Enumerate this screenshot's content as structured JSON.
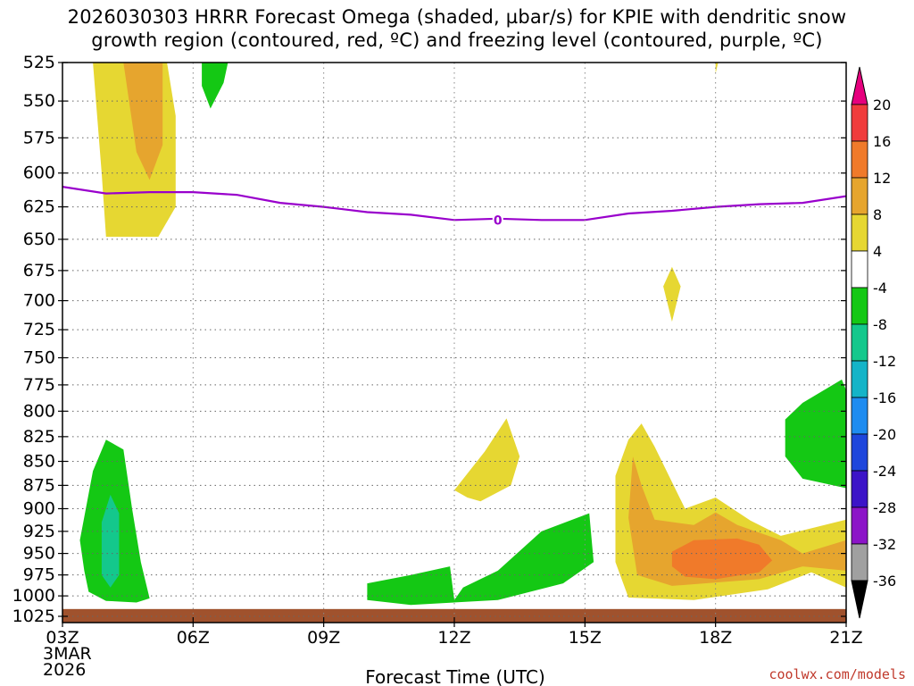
{
  "chart_data": {
    "type": "contour",
    "title": "2026030303 HRRR Forecast Omega (shaded, µbar/s) for KPIE with dendritic snow\ngrowth region (contoured, red, ºC) and freezing level (contoured, purple, ºC)",
    "xlabel": "Forecast Time (UTC)",
    "ylabel": "",
    "credit": "coolwx.com/models",
    "x_ticks": [
      "03Z",
      "06Z",
      "09Z",
      "12Z",
      "15Z",
      "18Z",
      "21Z"
    ],
    "x_tick_hours": [
      0,
      3,
      6,
      9,
      12,
      15,
      18
    ],
    "x_date_line1": "3MAR",
    "x_date_line2": "2026",
    "xlim": [
      0,
      18
    ],
    "y_ticks": [
      "525",
      "550",
      "575",
      "600",
      "625",
      "650",
      "675",
      "700",
      "725",
      "750",
      "775",
      "800",
      "825",
      "850",
      "875",
      "900",
      "925",
      "950",
      "975",
      "1000",
      "1025"
    ],
    "ylim": [
      525,
      1025
    ],
    "y_scale": "log-pressure",
    "grid": true,
    "colorbar": {
      "labels": [
        "20",
        "16",
        "12",
        "8",
        "4",
        "-4",
        "-8",
        "-12",
        "-16",
        "-20",
        "-24",
        "-28",
        "-32",
        "-36"
      ],
      "colors": [
        "#e6007e",
        "#f03c3c",
        "#f07a2a",
        "#e6a52e",
        "#e6d732",
        "#ffffff",
        "#14c814",
        "#14c88c",
        "#14b4c8",
        "#1e8cf0",
        "#1e46dc",
        "#3c14c8",
        "#8c14c8",
        "#a0a0a0",
        "#000000"
      ]
    },
    "freezing_level": {
      "label": "0",
      "color": "#9900cc",
      "points": [
        [
          0,
          610
        ],
        [
          1,
          615
        ],
        [
          2,
          614
        ],
        [
          3,
          614
        ],
        [
          4,
          616
        ],
        [
          5,
          622
        ],
        [
          6,
          625
        ],
        [
          7,
          629
        ],
        [
          8,
          631
        ],
        [
          9,
          635
        ],
        [
          10,
          634
        ],
        [
          11,
          635
        ],
        [
          12,
          635
        ],
        [
          13,
          630
        ],
        [
          14,
          628
        ],
        [
          15,
          625
        ],
        [
          16,
          623
        ],
        [
          17,
          622
        ],
        [
          18,
          617
        ]
      ]
    },
    "terrain": {
      "color": "#a0522d",
      "top_hpa": 1016
    },
    "shaded_regions": [
      {
        "level": "4 to 8",
        "color": "#e6d732",
        "points": [
          [
            0.7,
            525
          ],
          [
            2.4,
            525
          ],
          [
            2.6,
            560
          ],
          [
            2.6,
            625
          ],
          [
            2.2,
            648
          ],
          [
            1.0,
            648
          ],
          [
            0.9,
            600
          ]
        ]
      },
      {
        "level": "8 to 12",
        "color": "#e6a52e",
        "points": [
          [
            1.4,
            525
          ],
          [
            2.3,
            525
          ],
          [
            2.3,
            580
          ],
          [
            2.0,
            605
          ],
          [
            1.7,
            585
          ]
        ]
      },
      {
        "level": "-8 to -4",
        "color": "#14c814",
        "points": [
          [
            3.2,
            525
          ],
          [
            3.8,
            525
          ],
          [
            3.7,
            538
          ],
          [
            3.4,
            555
          ],
          [
            3.2,
            540
          ]
        ]
      },
      {
        "level": "4 to 8",
        "color": "#e6d732",
        "points": [
          [
            15.0,
            525
          ],
          [
            15.06,
            525
          ],
          [
            15.0,
            532
          ]
        ]
      },
      {
        "level": "4 to 8",
        "color": "#e6d732",
        "points": [
          [
            14.0,
            672
          ],
          [
            14.2,
            688
          ],
          [
            14.0,
            718
          ],
          [
            13.8,
            688
          ]
        ]
      },
      {
        "level": "-8 to -4",
        "color": "#14c814",
        "points": [
          [
            0.4,
            935
          ],
          [
            0.7,
            860
          ],
          [
            1.0,
            828
          ],
          [
            1.4,
            838
          ],
          [
            1.6,
            900
          ],
          [
            1.8,
            960
          ],
          [
            2.0,
            1003
          ],
          [
            1.7,
            1008
          ],
          [
            1.0,
            1006
          ],
          [
            0.6,
            995
          ],
          [
            0.5,
            970
          ]
        ]
      },
      {
        "level": "-12 to -8",
        "color": "#14c88c",
        "points": [
          [
            0.9,
            915
          ],
          [
            1.1,
            885
          ],
          [
            1.3,
            905
          ],
          [
            1.3,
            975
          ],
          [
            1.1,
            990
          ],
          [
            0.9,
            975
          ]
        ]
      },
      {
        "level": "-8 to -4",
        "color": "#14c814",
        "points": [
          [
            7.0,
            985
          ],
          [
            8.0,
            975
          ],
          [
            8.9,
            965
          ],
          [
            9.0,
            1005
          ],
          [
            9.2,
            990
          ],
          [
            10.0,
            970
          ],
          [
            11.0,
            925
          ],
          [
            12.1,
            905
          ],
          [
            12.2,
            960
          ],
          [
            11.5,
            985
          ],
          [
            10.0,
            1005
          ],
          [
            8.0,
            1011
          ],
          [
            7.0,
            1005
          ]
        ]
      },
      {
        "level": "4 to 8",
        "color": "#e6d732",
        "points": [
          [
            9.0,
            880
          ],
          [
            9.7,
            840
          ],
          [
            10.2,
            807
          ],
          [
            10.5,
            845
          ],
          [
            10.3,
            875
          ],
          [
            9.6,
            892
          ],
          [
            9.3,
            888
          ]
        ]
      },
      {
        "level": "-8 to -4",
        "color": "#14c814",
        "points": [
          [
            16.6,
            808
          ],
          [
            17.0,
            792
          ],
          [
            17.9,
            770
          ],
          [
            18.0,
            780
          ],
          [
            18.0,
            878
          ],
          [
            17.0,
            868
          ],
          [
            16.6,
            845
          ]
        ]
      },
      {
        "level": "4 to 8",
        "color": "#e6d732",
        "points": [
          [
            12.7,
            865
          ],
          [
            13.0,
            828
          ],
          [
            13.3,
            812
          ],
          [
            13.6,
            835
          ],
          [
            14.3,
            900
          ],
          [
            15.0,
            888
          ],
          [
            15.8,
            913
          ],
          [
            16.5,
            930
          ],
          [
            18.0,
            912
          ],
          [
            18.0,
            990
          ],
          [
            17.2,
            972
          ],
          [
            16.2,
            992
          ],
          [
            14.5,
            1005
          ],
          [
            13.0,
            1002
          ],
          [
            12.7,
            960
          ]
        ]
      },
      {
        "level": "8 to 12",
        "color": "#e6a52e",
        "points": [
          [
            13.0,
            910
          ],
          [
            13.1,
            845
          ],
          [
            13.3,
            875
          ],
          [
            13.6,
            912
          ],
          [
            14.5,
            918
          ],
          [
            15.0,
            904
          ],
          [
            15.5,
            918
          ],
          [
            16.5,
            935
          ],
          [
            17.0,
            950
          ],
          [
            18.0,
            935
          ],
          [
            18.0,
            970
          ],
          [
            17.0,
            965
          ],
          [
            16.0,
            980
          ],
          [
            14.0,
            988
          ],
          [
            13.2,
            975
          ]
        ]
      },
      {
        "level": "12 to 16",
        "color": "#f07a2a",
        "points": [
          [
            14.0,
            948
          ],
          [
            14.5,
            935
          ],
          [
            15.5,
            933
          ],
          [
            16.0,
            940
          ],
          [
            16.3,
            958
          ],
          [
            16.0,
            972
          ],
          [
            15.0,
            980
          ],
          [
            14.3,
            977
          ],
          [
            14.0,
            965
          ]
        ]
      }
    ]
  }
}
